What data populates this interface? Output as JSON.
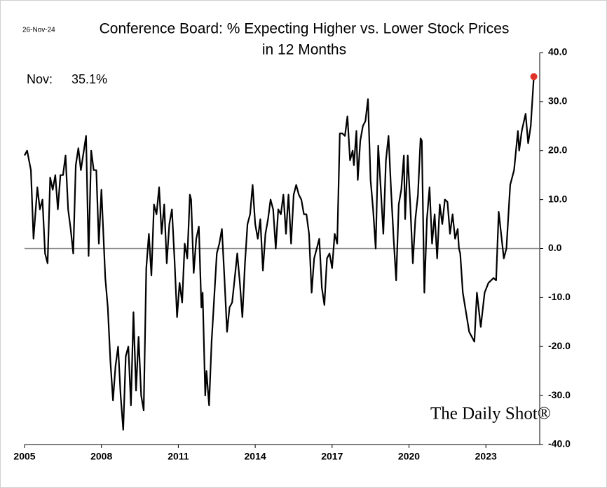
{
  "chart_data": {
    "type": "line",
    "date_stamp": "26-Nov-24",
    "title": [
      "Conference Board: % Expecting Higher vs. Lower Stock Prices",
      "in 12 Months"
    ],
    "latest_label": "Nov:",
    "latest_value_label": "35.1%",
    "watermark": "The Daily Shot®",
    "color": "#000000",
    "highlight_color": "#e0342a",
    "zero_line": true,
    "xlim": [
      2005,
      2025.1
    ],
    "xticks": [
      2005,
      2008,
      2011,
      2014,
      2017,
      2020,
      2023
    ],
    "ylim": [
      -40,
      40
    ],
    "yticks": [
      {
        "value": -40,
        "label": "-40.0"
      },
      {
        "value": -30,
        "label": "-30.0"
      },
      {
        "value": -20,
        "label": "-20.0"
      },
      {
        "value": -10,
        "label": "-10.0"
      },
      {
        "value": 0,
        "label": "0.0"
      },
      {
        "value": 10,
        "label": "10.0"
      },
      {
        "value": 20,
        "label": "20.0"
      },
      {
        "value": 30,
        "label": "30.0"
      },
      {
        "value": 40,
        "label": "40.0"
      }
    ],
    "x": [
      2005.0,
      2005.1,
      2005.25,
      2005.35,
      2005.5,
      2005.6,
      2005.7,
      2005.8,
      2005.9,
      2006.0,
      2006.1,
      2006.2,
      2006.3,
      2006.4,
      2006.5,
      2006.6,
      2006.7,
      2006.8,
      2006.9,
      2007.0,
      2007.1,
      2007.2,
      2007.4,
      2007.5,
      2007.6,
      2007.7,
      2007.8,
      2007.9,
      2008.0,
      2008.1,
      2008.15,
      2008.25,
      2008.35,
      2008.45,
      2008.55,
      2008.65,
      2008.75,
      2008.85,
      2008.95,
      2009.05,
      2009.15,
      2009.25,
      2009.35,
      2009.45,
      2009.55,
      2009.65,
      2009.75,
      2009.85,
      2009.95,
      2010.05,
      2010.15,
      2010.25,
      2010.35,
      2010.45,
      2010.55,
      2010.65,
      2010.75,
      2010.85,
      2010.95,
      2011.05,
      2011.15,
      2011.25,
      2011.35,
      2011.45,
      2011.5,
      2011.6,
      2011.7,
      2011.8,
      2011.9,
      2011.95,
      2012.05,
      2012.1,
      2012.2,
      2012.3,
      2012.4,
      2012.5,
      2012.6,
      2012.7,
      2012.8,
      2012.9,
      2013.0,
      2013.1,
      2013.2,
      2013.3,
      2013.4,
      2013.5,
      2013.6,
      2013.7,
      2013.8,
      2013.9,
      2014.0,
      2014.1,
      2014.2,
      2014.3,
      2014.4,
      2014.5,
      2014.6,
      2014.7,
      2014.8,
      2014.9,
      2015.0,
      2015.1,
      2015.2,
      2015.3,
      2015.4,
      2015.5,
      2015.6,
      2015.7,
      2015.8,
      2015.9,
      2016.0,
      2016.1,
      2016.2,
      2016.3,
      2016.4,
      2016.5,
      2016.6,
      2016.7,
      2016.8,
      2016.9,
      2017.0,
      2017.1,
      2017.2,
      2017.3,
      2017.4,
      2017.5,
      2017.6,
      2017.7,
      2017.8,
      2017.85,
      2017.95,
      2018.0,
      2018.1,
      2018.2,
      2018.3,
      2018.4,
      2018.5,
      2018.6,
      2018.7,
      2018.8,
      2018.9,
      2019.0,
      2019.1,
      2019.2,
      2019.3,
      2019.4,
      2019.5,
      2019.6,
      2019.7,
      2019.8,
      2019.85,
      2019.95,
      2020.05,
      2020.15,
      2020.25,
      2020.35,
      2020.45,
      2020.5,
      2020.6,
      2020.7,
      2020.8,
      2020.9,
      2021.0,
      2021.1,
      2021.2,
      2021.3,
      2021.4,
      2021.5,
      2021.6,
      2021.7,
      2021.8,
      2021.9,
      2021.95,
      2022.0,
      2022.1,
      2022.35,
      2022.55,
      2022.65,
      2022.8,
      2022.95,
      2023.1,
      2023.3,
      2023.4,
      2023.5,
      2023.7,
      2023.8,
      2023.95,
      2024.1,
      2024.25,
      2024.3,
      2024.4,
      2024.55,
      2024.65,
      2024.75,
      2024.87
    ],
    "values": [
      19,
      20,
      16,
      2,
      12.5,
      8,
      10,
      -1,
      -3,
      14.5,
      12,
      15,
      8,
      15,
      15,
      19,
      8,
      4,
      -1,
      17,
      20.5,
      16,
      23,
      -1.5,
      20,
      16,
      16,
      1,
      12,
      0,
      -6,
      -12,
      -23,
      -31,
      -24,
      -20,
      -30,
      -37,
      -22,
      -20,
      -32,
      -13,
      -29,
      -18,
      -30,
      -33,
      -4,
      3,
      -5.5,
      9,
      7,
      12.5,
      3,
      9,
      -3,
      5,
      8,
      -2,
      -14,
      -7,
      -11,
      1,
      -2,
      11,
      10,
      -5,
      2,
      4.5,
      -12,
      -9,
      -30,
      -25,
      -32,
      -19,
      -10,
      -1,
      1,
      4,
      -6,
      -17,
      -12,
      -11,
      -6,
      -1,
      -7,
      -14,
      -3,
      5,
      7,
      13,
      5,
      2,
      6,
      -4.5,
      3,
      6,
      10,
      8,
      0,
      8,
      7,
      11,
      3,
      11,
      1,
      11,
      13,
      11,
      10,
      7,
      7,
      3,
      -9,
      -2,
      0,
      2,
      -8,
      -11.5,
      -2,
      -1,
      -4,
      3,
      1,
      23.5,
      23.5,
      23,
      27,
      18,
      20,
      17,
      24,
      14,
      22,
      25,
      26,
      30.5,
      14,
      8,
      0,
      21,
      12,
      3,
      18,
      23,
      12,
      2,
      -6.5,
      9,
      12,
      19,
      6,
      19,
      9,
      -3,
      6,
      11,
      22.5,
      22,
      -9,
      6,
      12.5,
      1,
      7,
      -2,
      9,
      5,
      10,
      9.5,
      3,
      7,
      2,
      4,
      0,
      -1,
      -9,
      -17,
      -19,
      -9,
      -16,
      -9,
      -7,
      -6,
      -6.5,
      7.5,
      -2,
      0,
      13,
      16,
      24,
      20,
      24,
      27.5,
      21.5,
      25,
      35.1
    ]
  }
}
